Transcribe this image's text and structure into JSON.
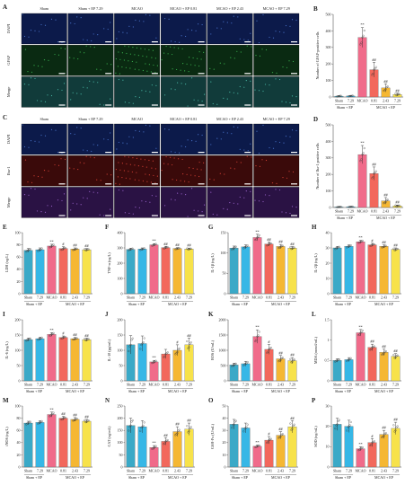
{
  "panels": {
    "A": {
      "letter": "A",
      "columns": [
        "Sham",
        "Sham + EP 7.29",
        "MCAO",
        "MCAO + EP 0.81",
        "MCAO + EP 2.43",
        "MCAO + EP 7.29"
      ],
      "rows": [
        "DAPI",
        "GFAP",
        "Merge"
      ],
      "tile_colors": [
        "#0c1a4a",
        "#0a2a12",
        "#113b3a"
      ]
    },
    "C": {
      "letter": "C",
      "columns": [
        "Sham",
        "Sham + EP 7.29",
        "MCAO",
        "MCAO + EP 0.81",
        "MCAO + EP 2.43",
        "MCAO + EP 7.29"
      ],
      "rows": [
        "DAPI",
        "Iba-1",
        "Merge"
      ],
      "tile_colors": [
        "#0c1a4a",
        "#3a0a0a",
        "#2a1244"
      ]
    }
  },
  "group_labels": {
    "short": [
      "Sham",
      "7.29",
      "MCAO",
      "0.81",
      "2.43",
      "7.29"
    ],
    "sham_group": "Sham + EP",
    "mcao_group": "MCAO + EP"
  },
  "colors": {
    "bars": [
      "#3aa9c7",
      "#36b7e6",
      "#f06b8a",
      "#f2685c",
      "#f5b733",
      "#f7e24a"
    ]
  },
  "chart_data": [
    {
      "letter": "B",
      "type": "bar",
      "ylabel": "Number of GFAP-positive cells",
      "ylim": [
        0,
        500
      ],
      "ticks": [
        0,
        100,
        200,
        300,
        400,
        500
      ],
      "values": [
        5,
        6,
        360,
        165,
        55,
        15
      ],
      "errors": [
        3,
        3,
        60,
        45,
        25,
        8
      ],
      "marks": [
        "",
        "",
        "**",
        "##",
        "##",
        "##"
      ]
    },
    {
      "letter": "D",
      "type": "bar",
      "ylabel": "Number of Iba-1 positive cells",
      "ylim": [
        0,
        500
      ],
      "ticks": [
        0,
        100,
        200,
        300,
        400,
        500
      ],
      "values": [
        3,
        4,
        320,
        205,
        40,
        10
      ],
      "errors": [
        2,
        2,
        55,
        40,
        20,
        5
      ],
      "marks": [
        "",
        "",
        "**",
        "##",
        "##",
        "##"
      ]
    },
    {
      "letter": "E",
      "type": "bar",
      "ylabel": "LDH (ng/L)",
      "ylim": [
        0,
        100
      ],
      "ticks": [
        0,
        20,
        40,
        60,
        80,
        100
      ],
      "values": [
        71,
        72,
        78,
        74,
        73,
        72
      ],
      "errors": [
        3,
        3,
        3,
        3,
        2,
        2
      ],
      "marks": [
        "",
        "",
        "**",
        "#",
        "##",
        "##"
      ]
    },
    {
      "letter": "F",
      "type": "bar",
      "ylabel": "TNF-α (ng/L)",
      "ylim": [
        0,
        400
      ],
      "ticks": [
        0,
        100,
        200,
        300,
        400
      ],
      "values": [
        290,
        292,
        320,
        302,
        296,
        293
      ],
      "errors": [
        8,
        8,
        8,
        8,
        6,
        6
      ],
      "marks": [
        "",
        "",
        "**",
        "##",
        "##",
        "##"
      ]
    },
    {
      "letter": "G",
      "type": "bar",
      "ylabel": "IL-1β (ng/L)",
      "ylim": [
        0,
        150
      ],
      "ticks": [
        0,
        50,
        100,
        150
      ],
      "values": [
        112,
        115,
        138,
        122,
        116,
        112
      ],
      "errors": [
        5,
        5,
        8,
        5,
        5,
        4
      ],
      "marks": [
        "",
        "",
        "**",
        "##",
        "##",
        "##"
      ]
    },
    {
      "letter": "H",
      "type": "bar",
      "ylabel": "IL-2β (ng/L)",
      "ylim": [
        0,
        40
      ],
      "ticks": [
        0,
        10,
        20,
        30,
        40
      ],
      "values": [
        30,
        31,
        34,
        32,
        31,
        29
      ],
      "errors": [
        1,
        1,
        1,
        1,
        1,
        1
      ],
      "marks": [
        "",
        "",
        "**",
        "#",
        "##",
        "##"
      ]
    },
    {
      "letter": "I",
      "type": "bar",
      "ylabel": "IL-6 (ng/L)",
      "ylim": [
        0,
        200
      ],
      "ticks": [
        0,
        50,
        100,
        150,
        200
      ],
      "values": [
        135,
        138,
        152,
        142,
        138,
        135
      ],
      "errors": [
        5,
        5,
        6,
        5,
        4,
        5
      ],
      "marks": [
        "",
        "",
        "**",
        "#",
        "##",
        "##"
      ]
    },
    {
      "letter": "J",
      "type": "bar",
      "ylabel": "IL-10 (pg/mL)",
      "ylim": [
        0,
        200
      ],
      "ticks": [
        0,
        50,
        100,
        150,
        200
      ],
      "values": [
        118,
        122,
        62,
        88,
        100,
        118
      ],
      "errors": [
        30,
        25,
        5,
        15,
        18,
        22
      ],
      "marks": [
        "",
        "",
        "**",
        "",
        "#",
        "##"
      ]
    },
    {
      "letter": "K",
      "type": "bar",
      "ylabel": "ROS (U/mL)",
      "ylim": [
        0,
        2000
      ],
      "ticks": [
        0,
        500,
        1000,
        1500,
        2000
      ],
      "values": [
        520,
        560,
        1450,
        1030,
        720,
        660
      ],
      "errors": [
        60,
        80,
        220,
        160,
        110,
        100
      ],
      "marks": [
        "",
        "",
        "**",
        "#",
        "##",
        "##"
      ]
    },
    {
      "letter": "L",
      "type": "bar",
      "ylabel": "MDA (mmol/mL)",
      "ylim": [
        0,
        1.5
      ],
      "ticks": [
        0,
        0.5,
        1.0,
        1.5
      ],
      "values": [
        0.5,
        0.52,
        1.18,
        0.82,
        0.7,
        0.6
      ],
      "errors": [
        0.04,
        0.05,
        0.08,
        0.08,
        0.08,
        0.07
      ],
      "marks": [
        "",
        "",
        "**",
        "##",
        "##",
        "##"
      ]
    },
    {
      "letter": "M",
      "type": "bar",
      "ylabel": "iNOS (ng/L)",
      "ylim": [
        0,
        100
      ],
      "ticks": [
        0,
        20,
        40,
        60,
        80,
        100
      ],
      "values": [
        72,
        73,
        86,
        80,
        78,
        75
      ],
      "errors": [
        3,
        3,
        4,
        3,
        3,
        3
      ],
      "marks": [
        "",
        "",
        "**",
        "##",
        "##",
        "##"
      ]
    },
    {
      "letter": "N",
      "type": "bar",
      "ylabel": "CAT (ng/mL)",
      "ylim": [
        0,
        250
      ],
      "ticks": [
        0,
        50,
        100,
        150,
        200,
        250
      ],
      "values": [
        170,
        165,
        80,
        105,
        145,
        155
      ],
      "errors": [
        30,
        25,
        8,
        15,
        20,
        25
      ],
      "marks": [
        "",
        "",
        "**",
        "##",
        "##",
        "##"
      ]
    },
    {
      "letter": "O",
      "type": "bar",
      "ylabel": "GSH-Px (U/mL)",
      "ylim": [
        0,
        50
      ],
      "ticks": [
        0,
        10,
        20,
        30,
        40,
        50
      ],
      "values": [
        35,
        32,
        17,
        22,
        26,
        33
      ],
      "errors": [
        4,
        4,
        1,
        3,
        3,
        5
      ],
      "marks": [
        "",
        "",
        "**",
        "#",
        "##",
        "##"
      ]
    },
    {
      "letter": "P",
      "type": "bar",
      "ylabel": "SOD (ng/mL)",
      "ylim": [
        0,
        30
      ],
      "ticks": [
        0,
        10,
        20,
        30
      ],
      "values": [
        21,
        20,
        9,
        12,
        16,
        19
      ],
      "errors": [
        3,
        3,
        1,
        2,
        2,
        3
      ],
      "marks": [
        "",
        "",
        "**",
        "#",
        "##",
        "##"
      ]
    }
  ]
}
